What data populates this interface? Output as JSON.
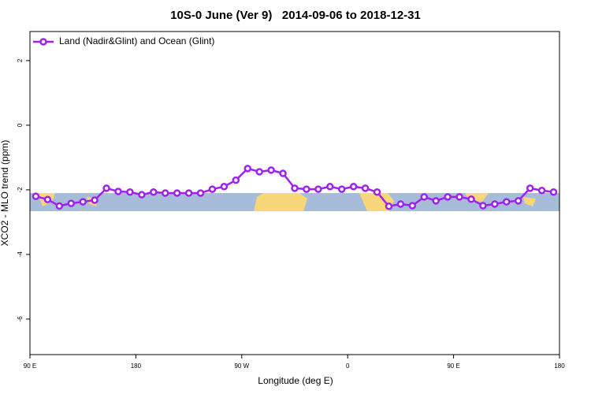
{
  "chart_data": {
    "type": "line",
    "title": "10S-0 June (Ver 9)   2014-09-06 to 2018-12-31",
    "x_label": "Longitude (deg E)",
    "y_label": "XCO2 - MLO trend (ppm)",
    "legend": "top-left",
    "xlim": [
      90,
      540
    ],
    "xticks": [
      {
        "value": 90,
        "label": "90 E"
      },
      180,
      {
        "value": 270,
        "label": "90 W"
      },
      {
        "value": 360,
        "label": "0"
      },
      {
        "value": 450,
        "label": "90 E"
      },
      {
        "value": 540,
        "label": "180"
      }
    ],
    "ylim": [
      -7.1,
      2.9
    ],
    "yticks": [
      -6,
      -4,
      -2,
      0,
      2
    ],
    "x": [
      95,
      105,
      115,
      125,
      135,
      145,
      155,
      165,
      175,
      185,
      195,
      205,
      215,
      225,
      235,
      245,
      255,
      265,
      275,
      285,
      295,
      305,
      315,
      325,
      335,
      345,
      355,
      365,
      375,
      385,
      395,
      405,
      415,
      425,
      435,
      445,
      455,
      465,
      475,
      485,
      495,
      505,
      515,
      525,
      535
    ],
    "series": [
      {
        "name": "Land (Nadir&Glint) and Ocean (Glint)",
        "color": "#a020f0",
        "values": [
          -2.2,
          -2.3,
          -2.5,
          -2.42,
          -2.37,
          -2.32,
          -1.95,
          -2.05,
          -2.07,
          -2.15,
          -2.07,
          -2.1,
          -2.1,
          -2.1,
          -2.1,
          -1.98,
          -1.9,
          -1.7,
          -1.34,
          -1.44,
          -1.39,
          -1.49,
          -1.95,
          -1.98,
          -1.98,
          -1.9,
          -1.98,
          -1.9,
          -1.95,
          -2.07,
          -2.51,
          -2.44,
          -2.49,
          -2.22,
          -2.34,
          -2.22,
          -2.22,
          -2.29,
          -2.49,
          -2.44,
          -2.37,
          -2.34,
          -1.95,
          -2.02,
          -2.07
        ]
      }
    ]
  }
}
